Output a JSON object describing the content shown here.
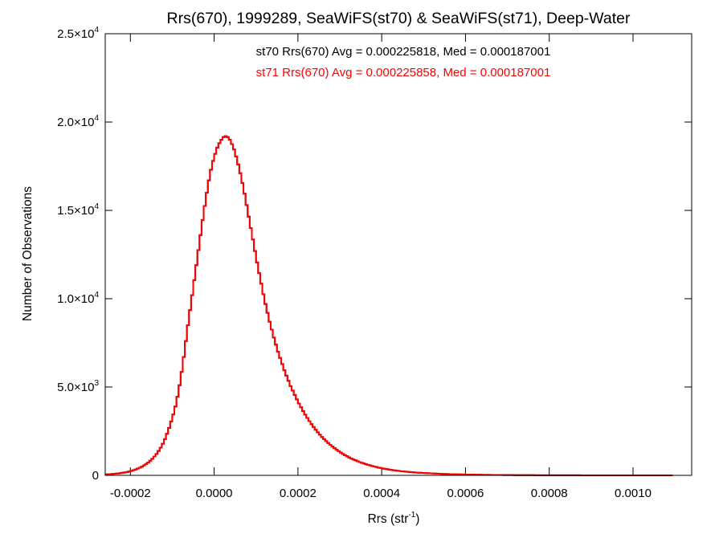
{
  "chart_data": {
    "type": "histogram-step",
    "title": "Rrs(670), 1999289, SeaWiFS(st70) & SeaWiFS(st71), Deep-Water",
    "xlabel": {
      "base": "Rrs (str",
      "sup": "-1",
      "close": ")"
    },
    "ylabel": "Number of Observations",
    "xlim": [
      -0.00026,
      0.00114
    ],
    "ylim": [
      0,
      25000
    ],
    "x_ticks": [
      {
        "value": -0.0002,
        "label": "-0.0002"
      },
      {
        "value": 0.0,
        "label": "0.0000"
      },
      {
        "value": 0.0002,
        "label": "0.0002"
      },
      {
        "value": 0.0004,
        "label": "0.0004"
      },
      {
        "value": 0.0006,
        "label": "0.0006"
      },
      {
        "value": 0.0008,
        "label": "0.0008"
      },
      {
        "value": 0.001,
        "label": "0.0010"
      }
    ],
    "y_ticks": [
      {
        "value": 0,
        "mant": "0",
        "exp": ""
      },
      {
        "value": 5000,
        "mant": "5.0×10",
        "exp": "3"
      },
      {
        "value": 10000,
        "mant": "1.0×10",
        "exp": "4"
      },
      {
        "value": 15000,
        "mant": "1.5×10",
        "exp": "4"
      },
      {
        "value": 20000,
        "mant": "2.0×10",
        "exp": "4"
      },
      {
        "value": 25000,
        "mant": "2.5×10",
        "exp": "4"
      }
    ],
    "annotations": [
      {
        "text": "st70 Rrs(670) Avg = 0.000225818, Med = 0.000187001",
        "color": "#000000"
      },
      {
        "text": "st71 Rrs(670) Avg = 0.000225858, Med = 0.000187001",
        "color": "#ff0000"
      }
    ],
    "bin_width": 5e-06,
    "bin_start": -0.00026,
    "series": [
      {
        "name": "st70",
        "color": "#000000",
        "values": [
          50,
          60,
          70,
          80,
          90,
          100,
          110,
          130,
          150,
          170,
          190,
          220,
          250,
          290,
          330,
          380,
          430,
          490,
          560,
          640,
          730,
          830,
          940,
          1070,
          1210,
          1380,
          1570,
          1790,
          2050,
          2350,
          2680,
          3050,
          3450,
          3900,
          4450,
          5100,
          5850,
          6700,
          7600,
          8500,
          9350,
          10200,
          11050,
          11900,
          12750,
          13600,
          14450,
          15250,
          16000,
          16700,
          17300,
          17800,
          18200,
          18550,
          18800,
          19000,
          19150,
          19200,
          19150,
          19000,
          18750,
          18450,
          18050,
          17600,
          17100,
          16550,
          15950,
          15300,
          14650,
          14000,
          13350,
          12700,
          12050,
          11450,
          10850,
          10250,
          9700,
          9200,
          8700,
          8250,
          7800,
          7400,
          7000,
          6650,
          6300,
          5950,
          5650,
          5350,
          5050,
          4800,
          4550,
          4300,
          4070,
          3850,
          3640,
          3440,
          3250,
          3070,
          2900,
          2740,
          2580,
          2440,
          2300,
          2170,
          2050,
          1940,
          1830,
          1730,
          1630,
          1540,
          1450,
          1370,
          1290,
          1210,
          1140,
          1080,
          1010,
          950,
          900,
          850,
          800,
          750,
          710,
          670,
          630,
          590,
          560,
          530,
          500,
          470,
          440,
          420,
          390,
          370,
          350,
          330,
          310,
          290,
          280,
          260,
          250,
          230,
          220,
          210,
          200,
          190,
          180,
          170,
          160,
          150,
          145,
          138,
          131,
          125,
          118,
          112,
          106,
          101,
          96,
          91,
          86,
          82,
          78,
          74,
          70,
          67,
          63,
          60,
          57,
          54,
          52,
          49,
          47,
          44,
          42,
          40,
          38,
          36,
          34,
          32,
          31,
          29,
          28,
          27,
          25,
          24,
          23,
          22,
          21,
          20,
          19,
          18,
          17,
          16,
          15,
          14,
          14,
          13,
          12,
          12,
          11,
          10,
          10,
          9,
          9,
          8,
          8,
          7,
          7,
          7,
          6,
          6,
          6,
          5,
          5,
          5,
          5,
          4,
          4,
          4,
          4,
          3,
          3,
          3,
          3,
          3,
          3,
          2,
          2,
          2,
          2,
          2,
          2,
          2,
          2,
          2,
          2,
          2,
          2,
          2,
          2,
          2,
          2,
          2,
          2,
          2,
          2,
          2,
          2,
          2,
          2,
          2,
          2,
          2,
          2,
          2,
          2,
          2,
          2,
          2,
          2,
          2,
          2,
          2,
          2,
          2,
          2,
          2,
          2,
          2,
          2
        ]
      },
      {
        "name": "st71",
        "color": "#ff0000",
        "values": [
          50,
          60,
          70,
          80,
          90,
          100,
          110,
          130,
          150,
          170,
          190,
          220,
          250,
          290,
          330,
          380,
          430,
          490,
          560,
          640,
          730,
          830,
          940,
          1070,
          1210,
          1380,
          1570,
          1790,
          2050,
          2350,
          2680,
          3050,
          3450,
          3900,
          4450,
          5100,
          5850,
          6700,
          7600,
          8500,
          9350,
          10200,
          11050,
          11900,
          12750,
          13600,
          14450,
          15250,
          16000,
          16700,
          17300,
          17800,
          18200,
          18550,
          18800,
          19000,
          19150,
          19200,
          19150,
          19000,
          18750,
          18450,
          18050,
          17600,
          17100,
          16550,
          15950,
          15300,
          14650,
          14000,
          13350,
          12700,
          12050,
          11450,
          10850,
          10250,
          9700,
          9200,
          8700,
          8250,
          7800,
          7400,
          7000,
          6650,
          6300,
          5950,
          5650,
          5350,
          5050,
          4800,
          4550,
          4300,
          4070,
          3850,
          3640,
          3440,
          3250,
          3070,
          2900,
          2740,
          2580,
          2440,
          2300,
          2170,
          2050,
          1940,
          1830,
          1730,
          1630,
          1540,
          1450,
          1370,
          1290,
          1210,
          1140,
          1080,
          1010,
          950,
          900,
          850,
          800,
          750,
          710,
          670,
          630,
          590,
          560,
          530,
          500,
          470,
          440,
          420,
          390,
          370,
          350,
          330,
          310,
          290,
          280,
          260,
          250,
          230,
          220,
          210,
          200,
          190,
          180,
          170,
          160,
          150,
          145,
          138,
          131,
          125,
          118,
          112,
          106,
          101,
          96,
          91,
          86,
          82,
          78,
          74,
          70,
          67,
          63,
          60,
          57,
          54,
          52,
          49,
          47,
          44,
          42,
          40,
          38,
          36,
          34,
          32,
          31,
          29,
          28,
          27,
          25,
          24,
          23,
          22,
          21,
          20,
          19,
          18,
          17,
          16,
          15,
          14,
          14,
          13,
          12,
          12,
          11,
          10,
          10,
          9,
          9,
          8,
          8,
          7,
          7,
          7,
          6,
          6,
          6,
          5,
          5,
          5,
          5,
          4,
          4,
          4,
          4,
          3,
          3,
          3,
          3,
          3,
          3,
          2,
          2,
          2,
          2,
          2,
          2,
          2,
          2,
          2,
          2,
          2,
          2,
          2,
          2,
          2,
          2,
          2,
          2,
          2,
          2,
          2,
          2,
          2,
          2,
          2,
          2,
          2,
          2,
          2,
          2,
          2,
          2,
          2,
          2,
          2,
          2,
          2,
          2,
          2,
          2,
          2,
          2,
          2,
          2
        ]
      }
    ]
  }
}
